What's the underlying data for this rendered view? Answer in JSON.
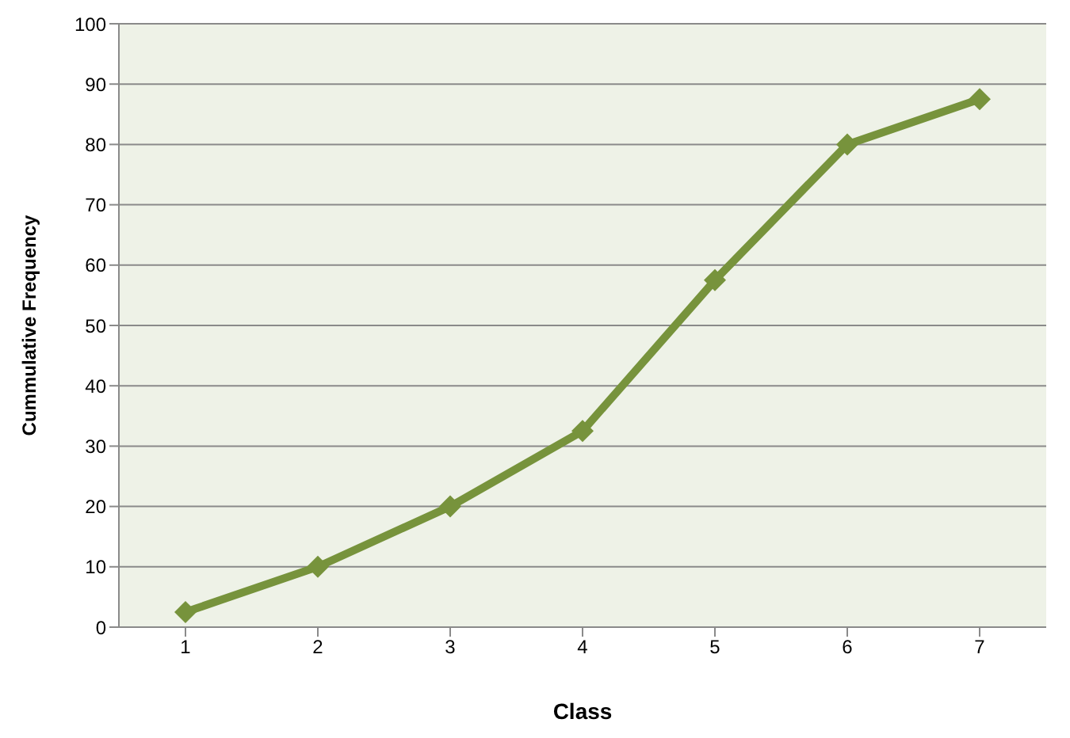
{
  "chart_data": {
    "type": "line",
    "xlabel": "Class",
    "ylabel": "Cummulative Frequency",
    "categories": [
      "1",
      "2",
      "3",
      "4",
      "5",
      "6",
      "7"
    ],
    "series": [
      {
        "color": "#77933c",
        "values": [
          2.5,
          10,
          20,
          32.5,
          57.5,
          80,
          87.5
        ]
      }
    ],
    "ylim": [
      0,
      100
    ],
    "yticks": [
      0,
      10,
      20,
      30,
      40,
      50,
      60,
      70,
      80,
      90,
      100
    ],
    "grid": "y",
    "marker": "diamond",
    "line_style": "solid"
  }
}
